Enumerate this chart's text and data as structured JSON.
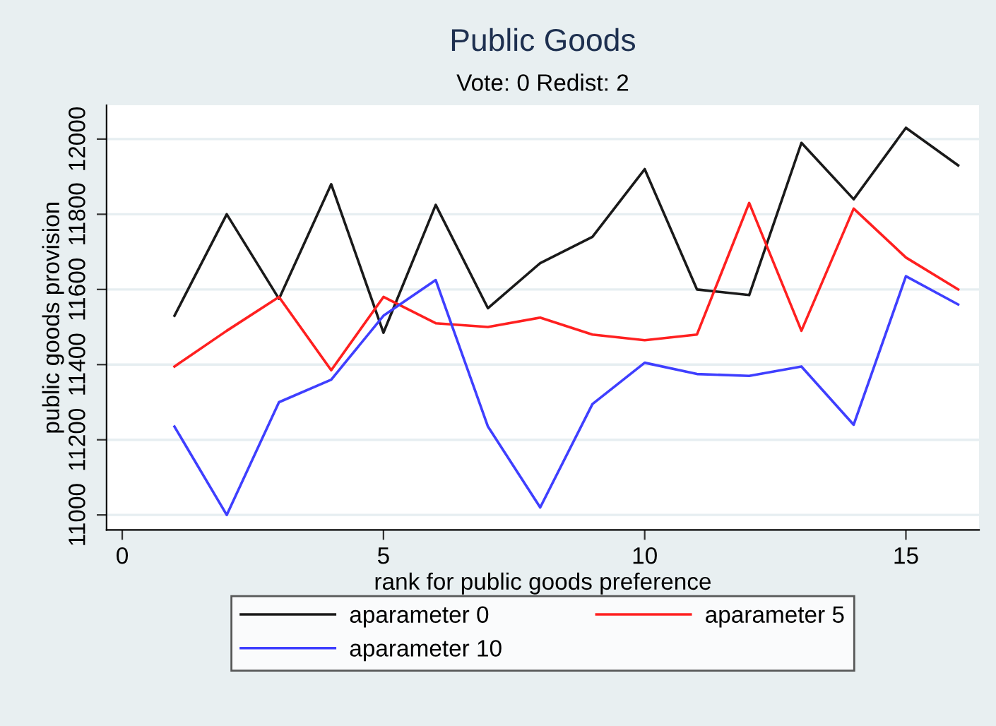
{
  "chart_data": {
    "type": "line",
    "title": "Public Goods",
    "subtitle": "Vote: 0 Redist: 2",
    "xlabel": "rank for public goods preference",
    "ylabel": "public goods provision",
    "x": [
      1,
      2,
      3,
      4,
      5,
      6,
      7,
      8,
      9,
      10,
      11,
      12,
      13,
      14,
      15,
      16
    ],
    "series": [
      {
        "name": "aparameter 0",
        "color": "#1a1a1a",
        "values": [
          11530,
          11800,
          11575,
          11880,
          11485,
          11825,
          11550,
          11670,
          11740,
          11920,
          11600,
          11585,
          11990,
          11840,
          12030,
          11930
        ]
      },
      {
        "name": "aparameter 5",
        "color": "#ff2020",
        "values": [
          11395,
          11490,
          11580,
          11385,
          11580,
          11510,
          11500,
          11525,
          11480,
          11465,
          11480,
          11830,
          11490,
          11815,
          11685,
          11600
        ]
      },
      {
        "name": "aparameter 10",
        "color": "#3f3fff",
        "values": [
          11235,
          11000,
          11300,
          11360,
          11530,
          11625,
          11235,
          11020,
          11295,
          11405,
          11375,
          11370,
          11395,
          11240,
          11635,
          11560
        ]
      }
    ],
    "xlim": [
      -0.3,
      16.4
    ],
    "xticks": [
      0,
      5,
      10,
      15
    ],
    "ylim": [
      10960,
      12090
    ],
    "yticks": [
      11000,
      11200,
      11400,
      11600,
      11800,
      12000
    ],
    "grid": "y",
    "legend": "bottom",
    "marker": "none",
    "line_style": "solid"
  }
}
